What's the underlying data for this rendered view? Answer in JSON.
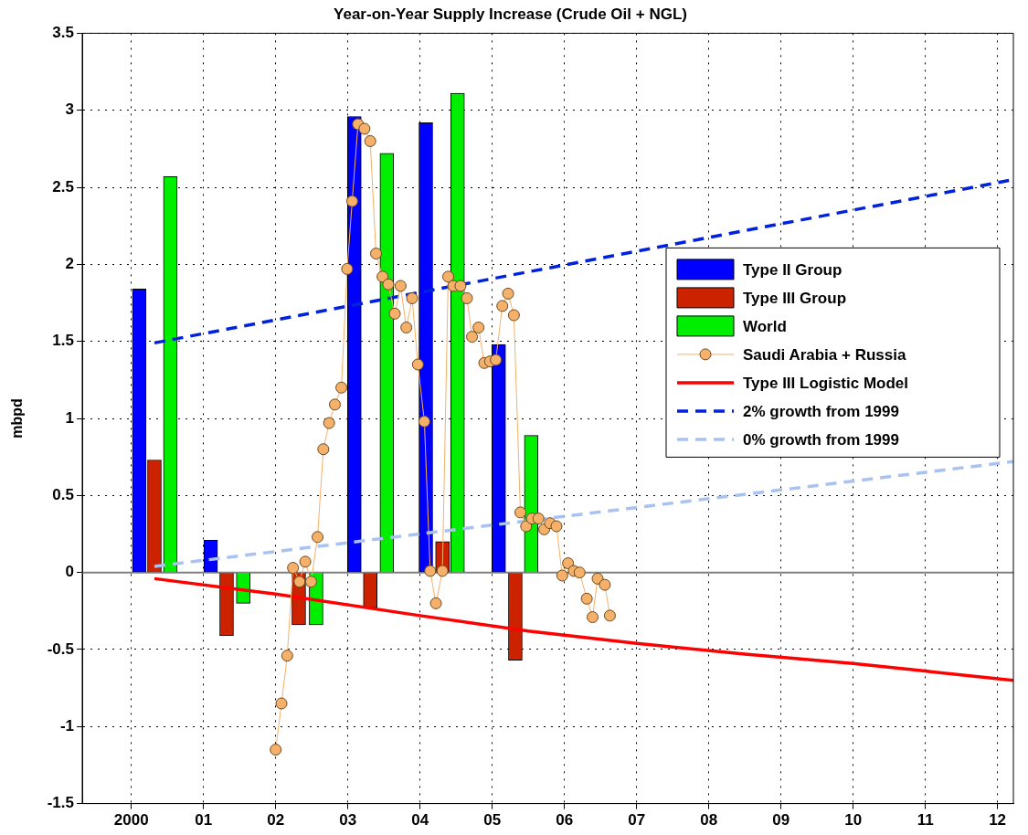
{
  "chart_data": {
    "type": "bar",
    "title": "Year-on-Year Supply Increase (Crude Oil + NGL)",
    "ylabel": "mbpd",
    "xlim": [
      1999.32,
      2012.22
    ],
    "xticks": [
      {
        "value": 2000,
        "label": "2000"
      },
      {
        "value": 2001,
        "label": "01"
      },
      {
        "value": 2002,
        "label": "02"
      },
      {
        "value": 2003,
        "label": "03"
      },
      {
        "value": 2004,
        "label": "04"
      },
      {
        "value": 2005,
        "label": "05"
      },
      {
        "value": 2006,
        "label": "06"
      },
      {
        "value": 2007,
        "label": "07"
      },
      {
        "value": 2008,
        "label": "08"
      },
      {
        "value": 2009,
        "label": "09"
      },
      {
        "value": 2010,
        "label": "10"
      },
      {
        "value": 2011,
        "label": "11"
      },
      {
        "value": 2012,
        "label": "12"
      }
    ],
    "ylim": [
      -1.5,
      3.5
    ],
    "yticks": [
      -1.5,
      -1,
      -0.5,
      0,
      0.5,
      1,
      1.5,
      2,
      2.5,
      3,
      3.5
    ],
    "grid": true,
    "legend": "right",
    "ref_lines": [
      {
        "axis": "y",
        "value": 0,
        "color": "#808080"
      }
    ],
    "series": [
      {
        "name": "Type II Group",
        "color": "#0000ff",
        "x": [
          2000.11,
          2001.1,
          2003.09,
          2004.08,
          2005.09
        ],
        "values": [
          1.84,
          0.21,
          2.96,
          2.92,
          1.48
        ]
      },
      {
        "name": "Type III Group",
        "color": "#cc2200",
        "x": [
          2000.32,
          2001.32,
          2002.32,
          2003.31,
          2004.31,
          2005.32
        ],
        "values": [
          0.73,
          -0.41,
          -0.34,
          -0.23,
          0.2,
          -0.57
        ]
      },
      {
        "name": "World",
        "color": "#00ee00",
        "x": [
          2000.54,
          2001.55,
          2002.56,
          2003.54,
          2004.52,
          2005.54
        ],
        "values": [
          2.57,
          -0.2,
          -0.34,
          2.72,
          3.11,
          0.89
        ]
      },
      {
        "name": "Saudi Arabia + Russia",
        "type": "line",
        "marker": "circle",
        "color": "#f5b06a",
        "x": [
          2002.0,
          2002.08,
          2002.16,
          2002.24,
          2002.33,
          2002.41,
          2002.49,
          2002.58,
          2002.66,
          2002.74,
          2002.82,
          2002.91,
          2002.99,
          2003.06,
          2003.14,
          2003.23,
          2003.31,
          2003.39,
          2003.48,
          2003.56,
          2003.65,
          2003.73,
          2003.81,
          2003.89,
          2003.97,
          2004.06,
          2004.14,
          2004.22,
          2004.31,
          2004.39,
          2004.46,
          2004.56,
          2004.65,
          2004.72,
          2004.81,
          2004.89,
          2004.97,
          2005.05,
          2005.14,
          2005.22,
          2005.3,
          2005.39,
          2005.47,
          2005.55,
          2005.64,
          2005.72,
          2005.8,
          2005.89,
          2005.97,
          2006.05,
          2006.13,
          2006.21,
          2006.31,
          2006.39,
          2006.46,
          2006.56,
          2006.63
        ],
        "values": [
          -1.15,
          -0.85,
          -0.54,
          0.03,
          -0.06,
          0.07,
          -0.06,
          0.23,
          0.8,
          0.97,
          1.09,
          1.2,
          1.97,
          2.41,
          2.91,
          2.88,
          2.8,
          2.07,
          1.92,
          1.87,
          1.68,
          1.86,
          1.59,
          1.78,
          1.35,
          0.98,
          0.01,
          -0.2,
          0.01,
          1.92,
          1.86,
          1.86,
          1.78,
          1.53,
          1.59,
          1.36,
          1.37,
          1.38,
          1.73,
          1.81,
          1.67,
          0.39,
          0.3,
          0.35,
          0.35,
          0.28,
          0.32,
          0.3,
          -0.02,
          0.06,
          0.01,
          0.0,
          -0.17,
          -0.29,
          -0.04,
          -0.08,
          -0.28
        ]
      },
      {
        "name": "Type III Logistic Model",
        "type": "line",
        "marker": "none",
        "line_style": "solid",
        "color": "#ff0000",
        "x": [
          2000.32,
          2002,
          2004,
          2005.5,
          2007,
          2008.5,
          2010,
          2011,
          2012.22
        ],
        "values": [
          -0.04,
          -0.14,
          -0.28,
          -0.38,
          -0.46,
          -0.53,
          -0.59,
          -0.64,
          -0.7
        ]
      },
      {
        "name": "2% growth from 1999",
        "type": "line",
        "marker": "none",
        "line_style": "dashed",
        "color": "#0022dd",
        "x": [
          2000.32,
          2012.22
        ],
        "values": [
          1.49,
          2.55
        ]
      },
      {
        "name": "0% growth from 1999",
        "type": "line",
        "marker": "none",
        "line_style": "dashed",
        "color": "#a9c2f0",
        "x": [
          2000.32,
          2012.22
        ],
        "values": [
          0.04,
          0.72
        ]
      }
    ]
  }
}
